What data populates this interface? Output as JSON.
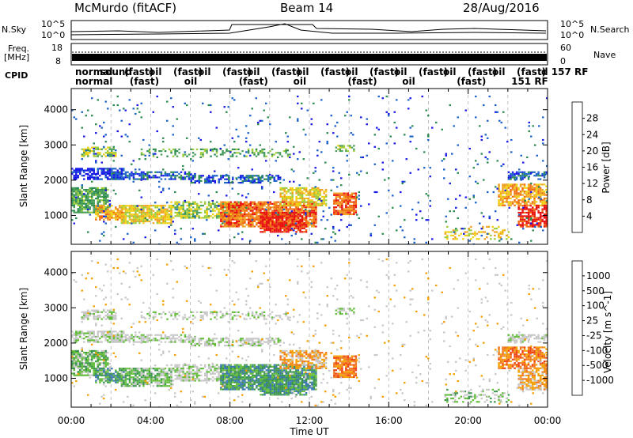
{
  "header": {
    "station": "McMurdo (fitACF)",
    "beam": "Beam 14",
    "date": "28/Aug/2016"
  },
  "side_labels": {
    "nsky": "N.Sky",
    "nsearch": "N.Search",
    "freq_line1": "Freq.",
    "freq_line2": "[MHz]",
    "nave": "Nave",
    "cpid": "CPID"
  },
  "top_axes": {
    "noise_left_ticks": [
      "10^5",
      "10^0"
    ],
    "noise_right_ticks": [
      "10^5",
      "10^0"
    ],
    "freq_left_ticks": [
      "18",
      "8"
    ],
    "nave_right_ticks": [
      "60",
      "0"
    ]
  },
  "cpid_strip": {
    "row1": [
      "normal",
      "sound",
      "(fast)",
      "oil",
      "(fast)",
      "oil",
      "(fast)",
      "oil",
      "(fast)",
      "oil",
      "(fast)",
      "oil",
      "(fast)",
      "oil",
      "(fast)",
      "oil",
      "(fast)",
      "oil",
      "(fast)",
      "d 157 RF"
    ],
    "row2": [
      "normal",
      "(fast)",
      "oil",
      "(fast)",
      "oil",
      "(fast)",
      "oil",
      "(fast)",
      "151 RF"
    ]
  },
  "colors": {
    "power_scale": [
      "#1a1ae6",
      "#1e64c8",
      "#2d8c50",
      "#4aa05a",
      "#9ccc3c",
      "#f0d010",
      "#f0a020",
      "#f06a10",
      "#e81010"
    ],
    "velocity_scale": [
      "#1a3cc8",
      "#3c78b4",
      "#3c9650",
      "#64be3c",
      "#c8c8c8",
      "#c8c8c8",
      "#f5a000",
      "#f07820",
      "#f04010",
      "#e81010"
    ]
  },
  "chart_data": [
    {
      "type": "heatmap",
      "panel": "power",
      "ylabel": "Slant Range [km]",
      "ylim": [
        180,
        4600
      ],
      "y_ticks": [
        "4000",
        "3000",
        "2000",
        "1000"
      ],
      "x_range_hours": [
        0,
        24
      ],
      "colorbar_label": "Power [dB]",
      "colorbar_ticks": [
        "28",
        "24",
        "20",
        "16",
        "12",
        "8",
        "4"
      ],
      "scatter_regions": [
        {
          "t0": 0.0,
          "t1": 1.8,
          "r0": 1100,
          "r1": 1800,
          "level": 3,
          "density": 0.75
        },
        {
          "t0": 0.0,
          "t1": 2.6,
          "r0": 2050,
          "r1": 2350,
          "level": 0,
          "density": 0.7
        },
        {
          "t0": 0.5,
          "t1": 2.2,
          "r0": 2700,
          "r1": 2950,
          "level": 4,
          "density": 0.6
        },
        {
          "t0": 1.2,
          "t1": 2.6,
          "r0": 900,
          "r1": 1300,
          "level": 6,
          "density": 0.7
        },
        {
          "t0": 2.0,
          "t1": 6.2,
          "r0": 2050,
          "r1": 2250,
          "level": 1,
          "density": 0.6
        },
        {
          "t0": 2.5,
          "t1": 5.0,
          "r0": 800,
          "r1": 1300,
          "level": 5,
          "density": 0.8
        },
        {
          "t0": 3.5,
          "t1": 11.0,
          "r0": 2700,
          "r1": 2900,
          "level": 3,
          "density": 0.35
        },
        {
          "t0": 5.0,
          "t1": 8.5,
          "r0": 950,
          "r1": 1400,
          "level": 4,
          "density": 0.65
        },
        {
          "t0": 6.0,
          "t1": 10.5,
          "r0": 1950,
          "r1": 2150,
          "level": 1,
          "density": 0.6
        },
        {
          "t0": 7.5,
          "t1": 12.3,
          "r0": 700,
          "r1": 1400,
          "level": 7,
          "density": 0.85
        },
        {
          "t0": 9.5,
          "t1": 11.8,
          "r0": 550,
          "r1": 1100,
          "level": 8,
          "density": 0.8
        },
        {
          "t0": 10.5,
          "t1": 12.8,
          "r0": 1300,
          "r1": 1800,
          "level": 5,
          "density": 0.7
        },
        {
          "t0": 13.2,
          "t1": 14.3,
          "r0": 1050,
          "r1": 1650,
          "level": 7,
          "density": 0.8
        },
        {
          "t0": 13.3,
          "t1": 14.2,
          "r0": 2850,
          "r1": 3000,
          "level": 4,
          "density": 0.55
        },
        {
          "t0": 18.8,
          "t1": 22.0,
          "r0": 350,
          "r1": 700,
          "level": 5,
          "density": 0.35
        },
        {
          "t0": 21.5,
          "t1": 24.0,
          "r0": 1300,
          "r1": 1900,
          "level": 6,
          "density": 0.75
        },
        {
          "t0": 22.5,
          "t1": 24.0,
          "r0": 700,
          "r1": 1300,
          "level": 8,
          "density": 0.7
        },
        {
          "t0": 22.0,
          "t1": 24.0,
          "r0": 2050,
          "r1": 2250,
          "level": 1,
          "density": 0.6
        },
        {
          "t0": 0.0,
          "t1": 24.0,
          "r0": 200,
          "r1": 4400,
          "level": 1,
          "density": 0.03
        }
      ]
    },
    {
      "type": "heatmap",
      "panel": "velocity",
      "ylabel": "Slant Range [km]",
      "ylim": [
        180,
        4600
      ],
      "y_ticks": [
        "4000",
        "3000",
        "2000",
        "1000"
      ],
      "x_range_hours": [
        0,
        24
      ],
      "x_ticks": [
        "00:00",
        "04:00",
        "08:00",
        "12:00",
        "16:00",
        "20:00",
        "00:00"
      ],
      "xlabel": "Time UT",
      "colorbar_label": "Velocity [m s^-1]",
      "colorbar_ticks": [
        "1000",
        "500",
        "100",
        "25",
        "-25",
        "-100",
        "-500",
        "-1000"
      ],
      "scatter_regions": [
        {
          "t0": 0.0,
          "t1": 1.8,
          "r0": 1100,
          "r1": 1800,
          "level": 3,
          "density": 0.75
        },
        {
          "t0": 0.0,
          "t1": 2.6,
          "r0": 2050,
          "r1": 2350,
          "level": 4,
          "density": 0.7
        },
        {
          "t0": 0.5,
          "t1": 2.2,
          "r0": 2700,
          "r1": 2950,
          "level": 4,
          "density": 0.6
        },
        {
          "t0": 1.2,
          "t1": 2.6,
          "r0": 900,
          "r1": 1300,
          "level": 2,
          "density": 0.7
        },
        {
          "t0": 2.0,
          "t1": 6.2,
          "r0": 2050,
          "r1": 2250,
          "level": 4,
          "density": 0.6
        },
        {
          "t0": 2.5,
          "t1": 5.0,
          "r0": 800,
          "r1": 1300,
          "level": 3,
          "density": 0.8
        },
        {
          "t0": 3.5,
          "t1": 11.0,
          "r0": 2700,
          "r1": 2900,
          "level": 4,
          "density": 0.35
        },
        {
          "t0": 5.0,
          "t1": 8.5,
          "r0": 950,
          "r1": 1400,
          "level": 4,
          "density": 0.65
        },
        {
          "t0": 6.0,
          "t1": 10.5,
          "r0": 1950,
          "r1": 2150,
          "level": 4,
          "density": 0.6
        },
        {
          "t0": 7.5,
          "t1": 12.3,
          "r0": 700,
          "r1": 1400,
          "level": 2,
          "density": 0.85
        },
        {
          "t0": 9.5,
          "t1": 11.8,
          "r0": 550,
          "r1": 1100,
          "level": 2,
          "density": 0.8
        },
        {
          "t0": 10.5,
          "t1": 12.8,
          "r0": 1300,
          "r1": 1800,
          "level": 6,
          "density": 0.7
        },
        {
          "t0": 13.2,
          "t1": 14.3,
          "r0": 1050,
          "r1": 1650,
          "level": 7,
          "density": 0.8
        },
        {
          "t0": 13.3,
          "t1": 14.2,
          "r0": 2850,
          "r1": 3000,
          "level": 4,
          "density": 0.55
        },
        {
          "t0": 18.8,
          "t1": 22.0,
          "r0": 350,
          "r1": 700,
          "level": 3,
          "density": 0.35
        },
        {
          "t0": 21.5,
          "t1": 24.0,
          "r0": 1300,
          "r1": 1900,
          "level": 7,
          "density": 0.75
        },
        {
          "t0": 22.5,
          "t1": 24.0,
          "r0": 700,
          "r1": 1300,
          "level": 6,
          "density": 0.7
        },
        {
          "t0": 22.0,
          "t1": 24.0,
          "r0": 2050,
          "r1": 2250,
          "level": 4,
          "density": 0.6
        },
        {
          "t0": 0.0,
          "t1": 24.0,
          "r0": 200,
          "r1": 4400,
          "level": 5,
          "density": 0.03
        }
      ]
    }
  ]
}
